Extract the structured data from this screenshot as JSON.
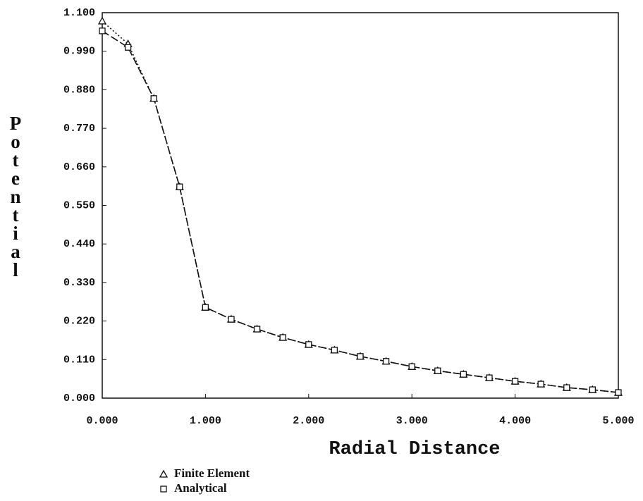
{
  "chart_data": {
    "type": "line",
    "xlabel": "Radial Distance",
    "ylabel": "Potential",
    "x": [
      0,
      0.25,
      0.5,
      0.75,
      1.0,
      1.25,
      1.5,
      1.75,
      2.0,
      2.25,
      2.5,
      2.75,
      3.0,
      3.25,
      3.5,
      3.75,
      4.0,
      4.25,
      4.5,
      4.75,
      5.0
    ],
    "series": [
      {
        "name": "Finite Element",
        "color": "#111111",
        "marker": "triangle",
        "style": "dotted",
        "values": [
          1.076,
          1.011,
          0.855,
          0.603,
          0.259,
          0.225,
          0.197,
          0.173,
          0.153,
          0.137,
          0.119,
          0.105,
          0.09,
          0.078,
          0.068,
          0.058,
          0.048,
          0.04,
          0.03,
          0.024,
          0.016
        ]
      },
      {
        "name": "Analytical",
        "color": "#111111",
        "marker": "square",
        "style": "dashed",
        "values": [
          1.048,
          1.001,
          0.855,
          0.603,
          0.259,
          0.225,
          0.197,
          0.173,
          0.153,
          0.137,
          0.119,
          0.105,
          0.09,
          0.078,
          0.068,
          0.058,
          0.048,
          0.04,
          0.03,
          0.024,
          0.016
        ]
      }
    ],
    "xlim": [
      0,
      5
    ],
    "xticks": [
      {
        "value": 0,
        "label": "0.000"
      },
      {
        "value": 1,
        "label": "1.000"
      },
      {
        "value": 2,
        "label": "2.000"
      },
      {
        "value": 3,
        "label": "3.000"
      },
      {
        "value": 4,
        "label": "4.000"
      },
      {
        "value": 5,
        "label": "5.000"
      }
    ],
    "ylim": [
      0,
      1.1
    ],
    "yticks": [
      {
        "value": 0,
        "label": "0.000"
      },
      {
        "value": 0.11,
        "label": "0.110"
      },
      {
        "value": 0.22,
        "label": "0.220"
      },
      {
        "value": 0.33,
        "label": "0.330"
      },
      {
        "value": 0.44,
        "label": "0.440"
      },
      {
        "value": 0.55,
        "label": "0.550"
      },
      {
        "value": 0.66,
        "label": "0.660"
      },
      {
        "value": 0.77,
        "label": "0.770"
      },
      {
        "value": 0.88,
        "label": "0.880"
      },
      {
        "value": 0.99,
        "label": "0.990"
      },
      {
        "value": 1.1,
        "label": "1.100"
      }
    ],
    "legend": "bottom-left"
  }
}
